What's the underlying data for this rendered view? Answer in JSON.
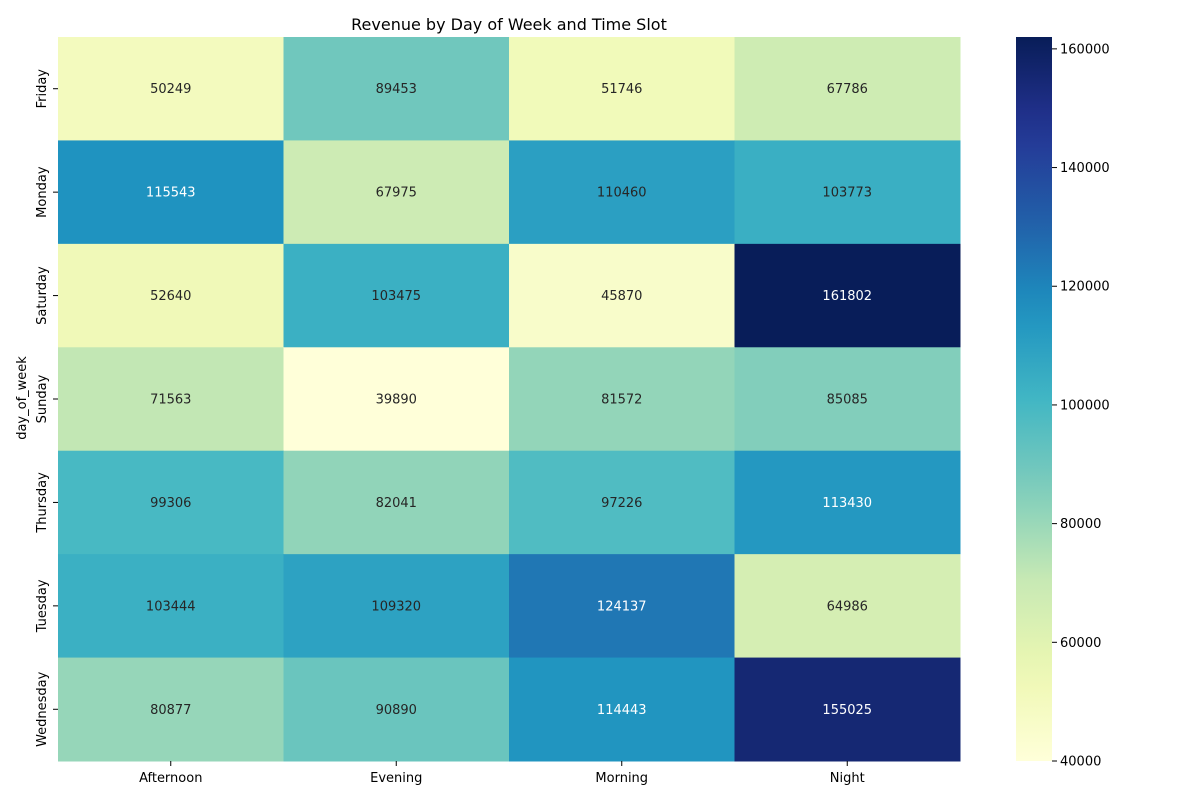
{
  "chart_data": {
    "type": "heatmap",
    "title": "Revenue by Day of Week and Time Slot",
    "xlabel": "",
    "ylabel": "day_of_week",
    "x_categories": [
      "Afternoon",
      "Evening",
      "Morning",
      "Night"
    ],
    "y_categories": [
      "Friday",
      "Monday",
      "Saturday",
      "Sunday",
      "Thursday",
      "Tuesday",
      "Wednesday"
    ],
    "values": [
      [
        50249,
        89453,
        51746,
        67786
      ],
      [
        115543,
        67975,
        110460,
        103773
      ],
      [
        52640,
        103475,
        45870,
        161802
      ],
      [
        71563,
        39890,
        81572,
        85085
      ],
      [
        99306,
        82041,
        97226,
        113430
      ],
      [
        103444,
        109320,
        124137,
        64986
      ],
      [
        80877,
        90890,
        114443,
        155025
      ]
    ],
    "color_range": [
      40000,
      162000
    ],
    "colorbar_ticks": [
      40000,
      60000,
      80000,
      100000,
      120000,
      140000,
      160000
    ]
  }
}
